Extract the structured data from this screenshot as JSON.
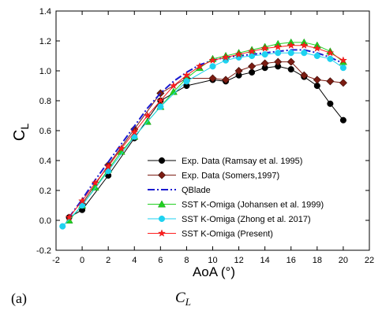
{
  "caption": {
    "label": "(a)",
    "symbol": "C",
    "symbol_sub": "L"
  },
  "chart_data": {
    "type": "line",
    "xlabel": "AoA (°)",
    "ylabel": "C",
    "ylabel_sub": "L",
    "xlim": [
      -2,
      22
    ],
    "ylim": [
      -0.2,
      1.4
    ],
    "x_ticks": [
      -2,
      0,
      2,
      4,
      6,
      8,
      10,
      12,
      14,
      16,
      18,
      20,
      22
    ],
    "y_ticks": [
      "-0.2",
      "0.0",
      "0.2",
      "0.4",
      "0.6",
      "0.8",
      "1.0",
      "1.2",
      "1.4"
    ],
    "legend_position": "lower-center",
    "series": [
      {
        "name": "Exp. Data (Ramsay et al. 1995)",
        "color": "#000000",
        "marker": "circle",
        "dash": "",
        "x": [
          -1,
          0,
          2,
          4,
          6,
          8,
          10,
          11,
          12,
          13,
          14,
          15,
          16,
          17,
          18,
          19,
          20
        ],
        "y": [
          0.02,
          0.07,
          0.3,
          0.55,
          0.8,
          0.9,
          0.94,
          0.93,
          0.97,
          0.99,
          1.02,
          1.03,
          1.01,
          0.96,
          0.9,
          0.78,
          0.67
        ]
      },
      {
        "name": "Exp. Data (Somers,1997)",
        "color": "#7b1c12",
        "marker": "diamond",
        "dash": "",
        "x": [
          0,
          2,
          4,
          6,
          8,
          10,
          11,
          12,
          13,
          14,
          15,
          16,
          17,
          18,
          19,
          20
        ],
        "y": [
          0.11,
          0.37,
          0.61,
          0.85,
          0.95,
          0.95,
          0.94,
          1.0,
          1.03,
          1.05,
          1.06,
          1.06,
          0.97,
          0.94,
          0.93,
          0.92
        ]
      },
      {
        "name": "QBlade",
        "color": "#1a1ad0",
        "marker": "none",
        "dash": "9,3,2,3",
        "x": [
          -1,
          0,
          1,
          2,
          3,
          4,
          5,
          6,
          7,
          8,
          9,
          10,
          11,
          12,
          13,
          14,
          15,
          16,
          17,
          18,
          19,
          20
        ],
        "y": [
          0.02,
          0.14,
          0.27,
          0.39,
          0.51,
          0.63,
          0.75,
          0.85,
          0.93,
          0.99,
          1.04,
          1.07,
          1.09,
          1.1,
          1.11,
          1.12,
          1.13,
          1.14,
          1.14,
          1.12,
          1.09,
          1.05
        ]
      },
      {
        "name": "SST K-Omiga (Johansen et al. 1999)",
        "color": "#22d022",
        "marker": "triangle",
        "dash": "",
        "x": [
          -1,
          0,
          1,
          2,
          3,
          4,
          5,
          6,
          7,
          8,
          9,
          10,
          11,
          12,
          13,
          14,
          15,
          16,
          17,
          18,
          19,
          20
        ],
        "y": [
          0.0,
          0.1,
          0.22,
          0.34,
          0.46,
          0.56,
          0.66,
          0.76,
          0.86,
          0.95,
          1.02,
          1.08,
          1.1,
          1.12,
          1.14,
          1.16,
          1.18,
          1.19,
          1.19,
          1.17,
          1.13,
          1.06
        ]
      },
      {
        "name": "SST K-Omiga (Zhong et al. 2017)",
        "color": "#1ed2f0",
        "marker": "circle",
        "dash": "",
        "x": [
          -1.5,
          0,
          2,
          4,
          6,
          8,
          10,
          11,
          12,
          13,
          14,
          15,
          16,
          17,
          18,
          19,
          20
        ],
        "y": [
          -0.04,
          0.1,
          0.33,
          0.56,
          0.76,
          0.93,
          1.03,
          1.07,
          1.09,
          1.1,
          1.11,
          1.12,
          1.12,
          1.12,
          1.1,
          1.08,
          1.02
        ]
      },
      {
        "name": "SST K-Omiga (Present)",
        "color": "#ff1e1e",
        "marker": "star",
        "dash": "",
        "x": [
          -1,
          0,
          1,
          2,
          3,
          4,
          5,
          6,
          7,
          8,
          9,
          10,
          11,
          12,
          13,
          14,
          15,
          16,
          17,
          18,
          19,
          20
        ],
        "y": [
          0.02,
          0.13,
          0.25,
          0.36,
          0.48,
          0.59,
          0.7,
          0.8,
          0.9,
          0.97,
          1.03,
          1.07,
          1.09,
          1.11,
          1.13,
          1.15,
          1.16,
          1.17,
          1.17,
          1.15,
          1.12,
          1.07
        ]
      }
    ]
  }
}
